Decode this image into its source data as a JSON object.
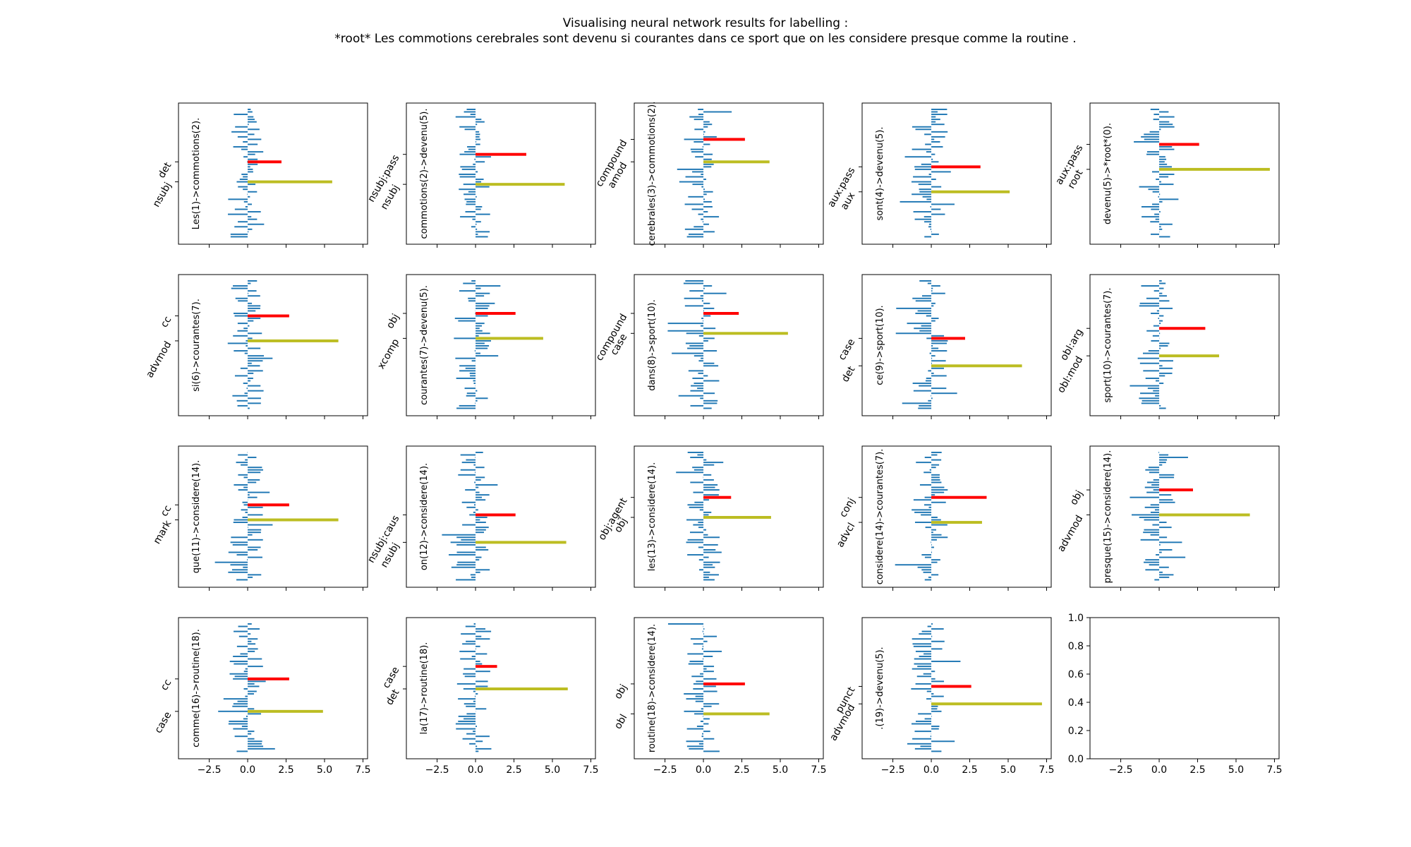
{
  "figure": {
    "title_line1": "Visualising neural network results for labelling :",
    "title_line2": "*root* Les commotions cerebrales sont devenu si courantes dans ce sport que on les considere presque comme la routine .",
    "colors": {
      "bars": "#1f77b4",
      "predicted": "#ff0000",
      "gold": "#bcbd22"
    }
  },
  "chart_data": [
    {
      "type": "bar",
      "orientation": "horizontal",
      "ylabel": "Les(1)->commotions(2).",
      "ytick_labels": [
        "nsubj",
        "det"
      ],
      "red_value": 2.2,
      "gold_value": 5.5
    },
    {
      "type": "bar",
      "orientation": "horizontal",
      "ylabel": "commotions(2)->devenu(5).",
      "ytick_labels": [
        "nsubj",
        "nsubj:pass"
      ],
      "red_value": 3.3,
      "gold_value": 5.8
    },
    {
      "type": "bar",
      "orientation": "horizontal",
      "ylabel": "cerebrales(3)->commotions(2).",
      "ytick_labels": [
        "amod",
        "compound"
      ],
      "red_value": 2.7,
      "gold_value": 4.3
    },
    {
      "type": "bar",
      "orientation": "horizontal",
      "ylabel": "sont(4)->devenu(5).",
      "ytick_labels": [
        "aux",
        "aux:pass"
      ],
      "red_value": 3.2,
      "gold_value": 5.1
    },
    {
      "type": "bar",
      "orientation": "horizontal",
      "ylabel": "devenu(5)->*root*(0).",
      "ytick_labels": [
        "root",
        "aux:pass"
      ],
      "red_value": 2.6,
      "gold_value": 7.2
    },
    {
      "type": "bar",
      "orientation": "horizontal",
      "ylabel": "si(6)->courantes(7).",
      "ytick_labels": [
        "advmod",
        "cc"
      ],
      "red_value": 2.7,
      "gold_value": 5.9
    },
    {
      "type": "bar",
      "orientation": "horizontal",
      "ylabel": "courantes(7)->devenu(5).",
      "ytick_labels": [
        "xcomp",
        "obj"
      ],
      "red_value": 2.6,
      "gold_value": 4.4
    },
    {
      "type": "bar",
      "orientation": "horizontal",
      "ylabel": "dans(8)->sport(10).",
      "ytick_labels": [
        "case",
        "compound"
      ],
      "red_value": 2.3,
      "gold_value": 5.5
    },
    {
      "type": "bar",
      "orientation": "horizontal",
      "ylabel": "ce(9)->sport(10).",
      "ytick_labels": [
        "det",
        "case"
      ],
      "red_value": 2.2,
      "gold_value": 5.9
    },
    {
      "type": "bar",
      "orientation": "horizontal",
      "ylabel": "sport(10)->courantes(7).",
      "ytick_labels": [
        "obl:mod",
        "obl:arg"
      ],
      "red_value": 3.0,
      "gold_value": 3.9
    },
    {
      "type": "bar",
      "orientation": "horizontal",
      "ylabel": "que(11)->considere(14).",
      "ytick_labels": [
        "mark",
        "cc"
      ],
      "red_value": 2.7,
      "gold_value": 5.9
    },
    {
      "type": "bar",
      "orientation": "horizontal",
      "ylabel": "on(12)->considere(14).",
      "ytick_labels": [
        "nsubj",
        "nsubj:caus"
      ],
      "red_value": 2.6,
      "gold_value": 5.9
    },
    {
      "type": "bar",
      "orientation": "horizontal",
      "ylabel": "les(13)->considere(14).",
      "ytick_labels": [
        "obj",
        "obj:agent"
      ],
      "red_value": 1.8,
      "gold_value": 4.4
    },
    {
      "type": "bar",
      "orientation": "horizontal",
      "ylabel": "considere(14)->courantes(7).",
      "ytick_labels": [
        "advcl",
        "conj"
      ],
      "red_value": 3.6,
      "gold_value": 3.3
    },
    {
      "type": "bar",
      "orientation": "horizontal",
      "ylabel": "presque(15)->considere(14).",
      "ytick_labels": [
        "advmod",
        "obj"
      ],
      "red_value": 2.2,
      "gold_value": 5.9
    },
    {
      "type": "bar",
      "orientation": "horizontal",
      "ylabel": "comme(16)->routine(18).",
      "ytick_labels": [
        "case",
        "cc"
      ],
      "red_value": 2.7,
      "gold_value": 4.9
    },
    {
      "type": "bar",
      "orientation": "horizontal",
      "ylabel": "la(17)->routine(18).",
      "ytick_labels": [
        "det",
        "case"
      ],
      "red_value": 1.4,
      "gold_value": 6.0
    },
    {
      "type": "bar",
      "orientation": "horizontal",
      "ylabel": "routine(18)->considere(14).",
      "ytick_labels": [
        "obl",
        "obj"
      ],
      "red_value": 2.7,
      "gold_value": 4.3
    },
    {
      "type": "bar",
      "orientation": "horizontal",
      "ylabel": ".(19)->devenu(5).",
      "ytick_labels": [
        "advmod",
        "punct"
      ],
      "red_value": 2.6,
      "gold_value": 7.2
    },
    {
      "type": "empty",
      "ylabel": "",
      "ytick_labels": [],
      "yticks": [
        "0.0",
        "0.2",
        "0.4",
        "0.6",
        "0.8",
        "1.0"
      ]
    }
  ],
  "shared_x_axis": {
    "range": [
      -4.5,
      7.8
    ],
    "ticks": [
      -2.5,
      0.0,
      2.5,
      5.0,
      7.5
    ],
    "tick_labels": [
      "−2.5",
      "0.0",
      "2.5",
      "5.0",
      "7.5"
    ]
  }
}
